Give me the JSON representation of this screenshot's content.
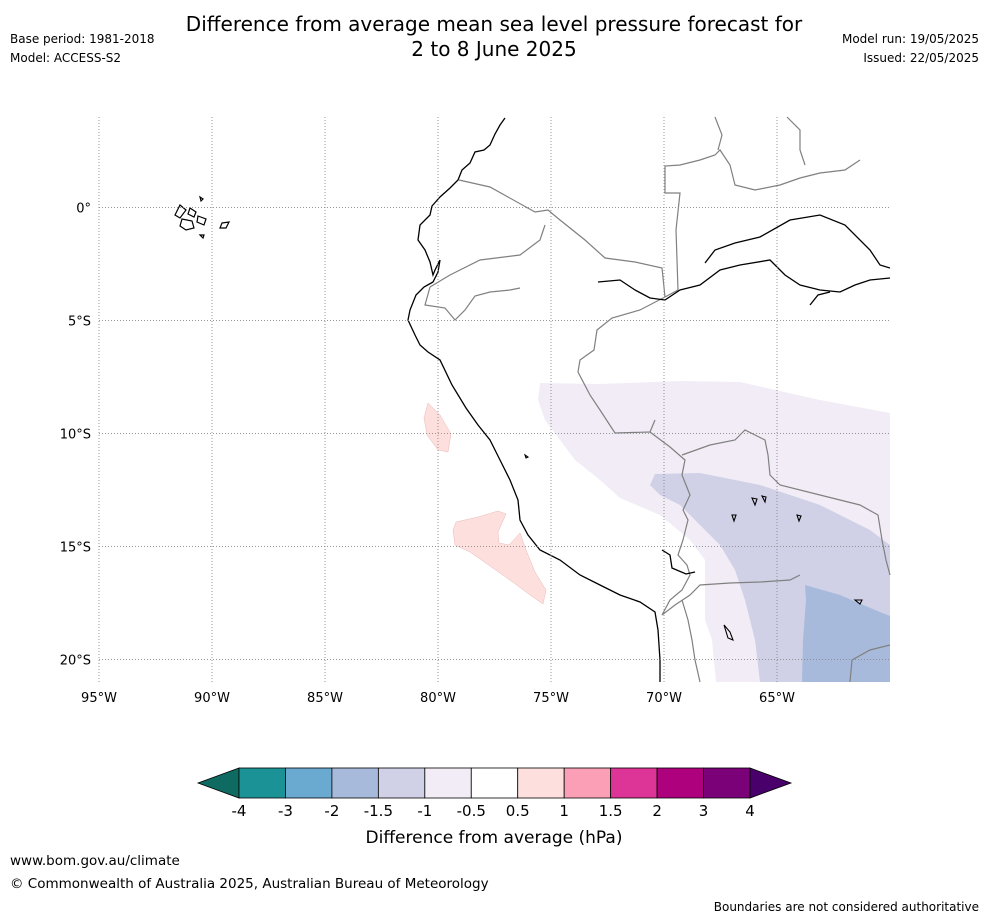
{
  "header": {
    "title_line1": "Difference from average mean sea level pressure forecast for",
    "title_line2": "2 to 8 June 2025",
    "base_period": "Base period: 1981-2018",
    "model": "Model: ACCESS-S2",
    "model_run": "Model run: 19/05/2025",
    "issued": "Issued: 22/05/2025"
  },
  "map": {
    "lon_range": [
      -95,
      -60
    ],
    "lat_range": [
      -21,
      4
    ],
    "lon_labels": [
      {
        "lon": -95,
        "label": "95°W"
      },
      {
        "lon": -90,
        "label": "90°W"
      },
      {
        "lon": -85,
        "label": "85°W"
      },
      {
        "lon": -80,
        "label": "80°W"
      },
      {
        "lon": -75,
        "label": "75°W"
      },
      {
        "lon": -70,
        "label": "70°W"
      },
      {
        "lon": -65,
        "label": "65°W"
      }
    ],
    "lat_labels": [
      {
        "lat": 0,
        "label": "0°"
      },
      {
        "lat": -5,
        "label": "5°S"
      },
      {
        "lat": -10,
        "label": "10°S"
      },
      {
        "lat": -15,
        "label": "15°S"
      },
      {
        "lat": -20,
        "label": "20°S"
      }
    ]
  },
  "colorbar": {
    "label": "Difference from average (hPa)",
    "colors": [
      "#1a9296",
      "#6aaad1",
      "#a7badb",
      "#d0d1e6",
      "#f2ecf6",
      "#ffffff",
      "#fde0dd",
      "#fa9fb5",
      "#dd3497",
      "#ae017e",
      "#7a0177"
    ],
    "under_color": "#0f6b62",
    "over_color": "#49006a",
    "ticks": [
      "-4",
      "-3",
      "-2",
      "-1.5",
      "-1",
      "-0.5",
      "0.5",
      "1",
      "1.5",
      "2",
      "3",
      "4"
    ]
  },
  "footer": {
    "url": "www.bom.gov.au/climate",
    "copyright": "© Commonwealth of Australia 2025, Australian Bureau of Meteorology",
    "disclaimer": "Boundaries are not considered authoritative"
  }
}
